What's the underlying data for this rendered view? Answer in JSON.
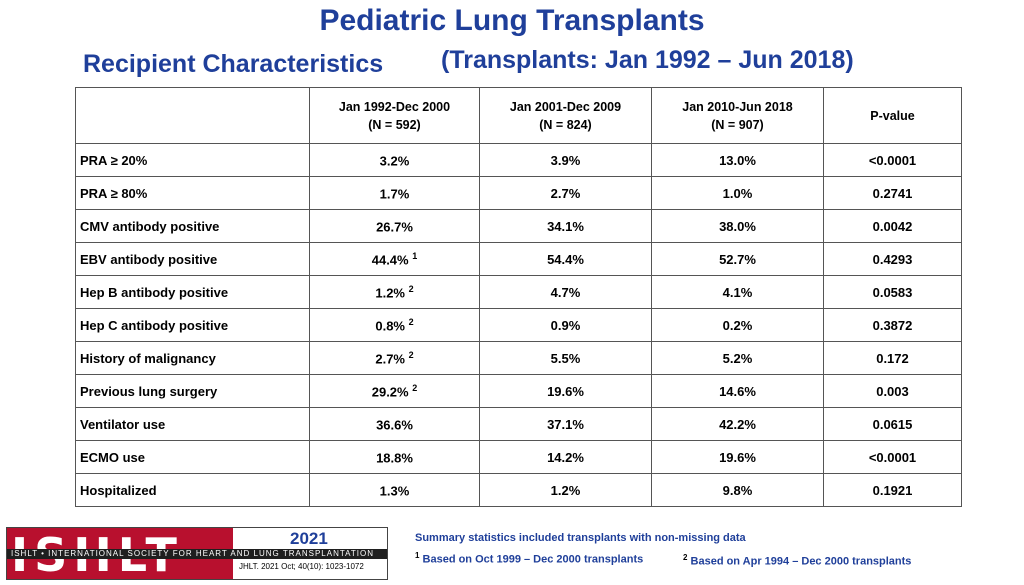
{
  "title": "Pediatric Lung Transplants",
  "subtitle_left": "Recipient Characteristics",
  "subtitle_right": "(Transplants: Jan 1992 – Jun 2018)",
  "table": {
    "headers": [
      {
        "line1": "",
        "line2": ""
      },
      {
        "line1": "Jan 1992-Dec 2000",
        "line2": "(N = 592)"
      },
      {
        "line1": "Jan 2001-Dec 2009",
        "line2": "(N = 824)"
      },
      {
        "line1": "Jan 2010-Jun 2018",
        "line2": "(N = 907)"
      },
      {
        "line1": "P-value",
        "line2": ""
      }
    ],
    "rows": [
      {
        "label": "PRA ≥ 20%",
        "c1": "3.2%",
        "c1_sup": "",
        "c2": "3.9%",
        "c3": "13.0%",
        "p": "<0.0001"
      },
      {
        "label": "PRA ≥ 80%",
        "c1": "1.7%",
        "c1_sup": "",
        "c2": "2.7%",
        "c3": "1.0%",
        "p": "0.2741"
      },
      {
        "label": "CMV antibody positive",
        "c1": "26.7%",
        "c1_sup": "",
        "c2": "34.1%",
        "c3": "38.0%",
        "p": "0.0042"
      },
      {
        "label": "EBV antibody positive",
        "c1": "44.4%",
        "c1_sup": "1",
        "c2": "54.4%",
        "c3": "52.7%",
        "p": "0.4293"
      },
      {
        "label": "Hep B antibody positive",
        "c1": "1.2%",
        "c1_sup": "2",
        "c2": "4.7%",
        "c3": "4.1%",
        "p": "0.0583"
      },
      {
        "label": "Hep C antibody positive",
        "c1": "0.8%",
        "c1_sup": "2",
        "c2": "0.9%",
        "c3": "0.2%",
        "p": "0.3872"
      },
      {
        "label": "History of malignancy",
        "c1": "2.7%",
        "c1_sup": "2",
        "c2": "5.5%",
        "c3": "5.2%",
        "p": "0.172"
      },
      {
        "label": "Previous lung surgery",
        "c1": "29.2%",
        "c1_sup": "2",
        "c2": "19.6%",
        "c3": "14.6%",
        "p": "0.003"
      },
      {
        "label": "Ventilator use",
        "c1": "36.6%",
        "c1_sup": "",
        "c2": "37.1%",
        "c3": "42.2%",
        "p": "0.0615"
      },
      {
        "label": "ECMO use",
        "c1": "18.8%",
        "c1_sup": "",
        "c2": "14.2%",
        "c3": "19.6%",
        "p": "<0.0001"
      },
      {
        "label": "Hospitalized",
        "c1": "1.3%",
        "c1_sup": "",
        "c2": "1.2%",
        "c3": "9.8%",
        "p": "0.1921"
      }
    ]
  },
  "logo": {
    "letters": "ISHLT",
    "band": "ISHLT • INTERNATIONAL SOCIETY FOR HEART AND LUNG TRANSPLANTATION",
    "year": "2021",
    "citation": "JHLT. 2021 Oct; 40(10): 1023-1072"
  },
  "notes": {
    "summary": "Summary statistics included transplants with non-missing data",
    "note1_mark": "1",
    "note1_text": "Based on Oct 1999 – Dec 2000 transplants",
    "note2_mark": "2",
    "note2_text": "Based on Apr 1994 – Dec 2000 transplants"
  }
}
